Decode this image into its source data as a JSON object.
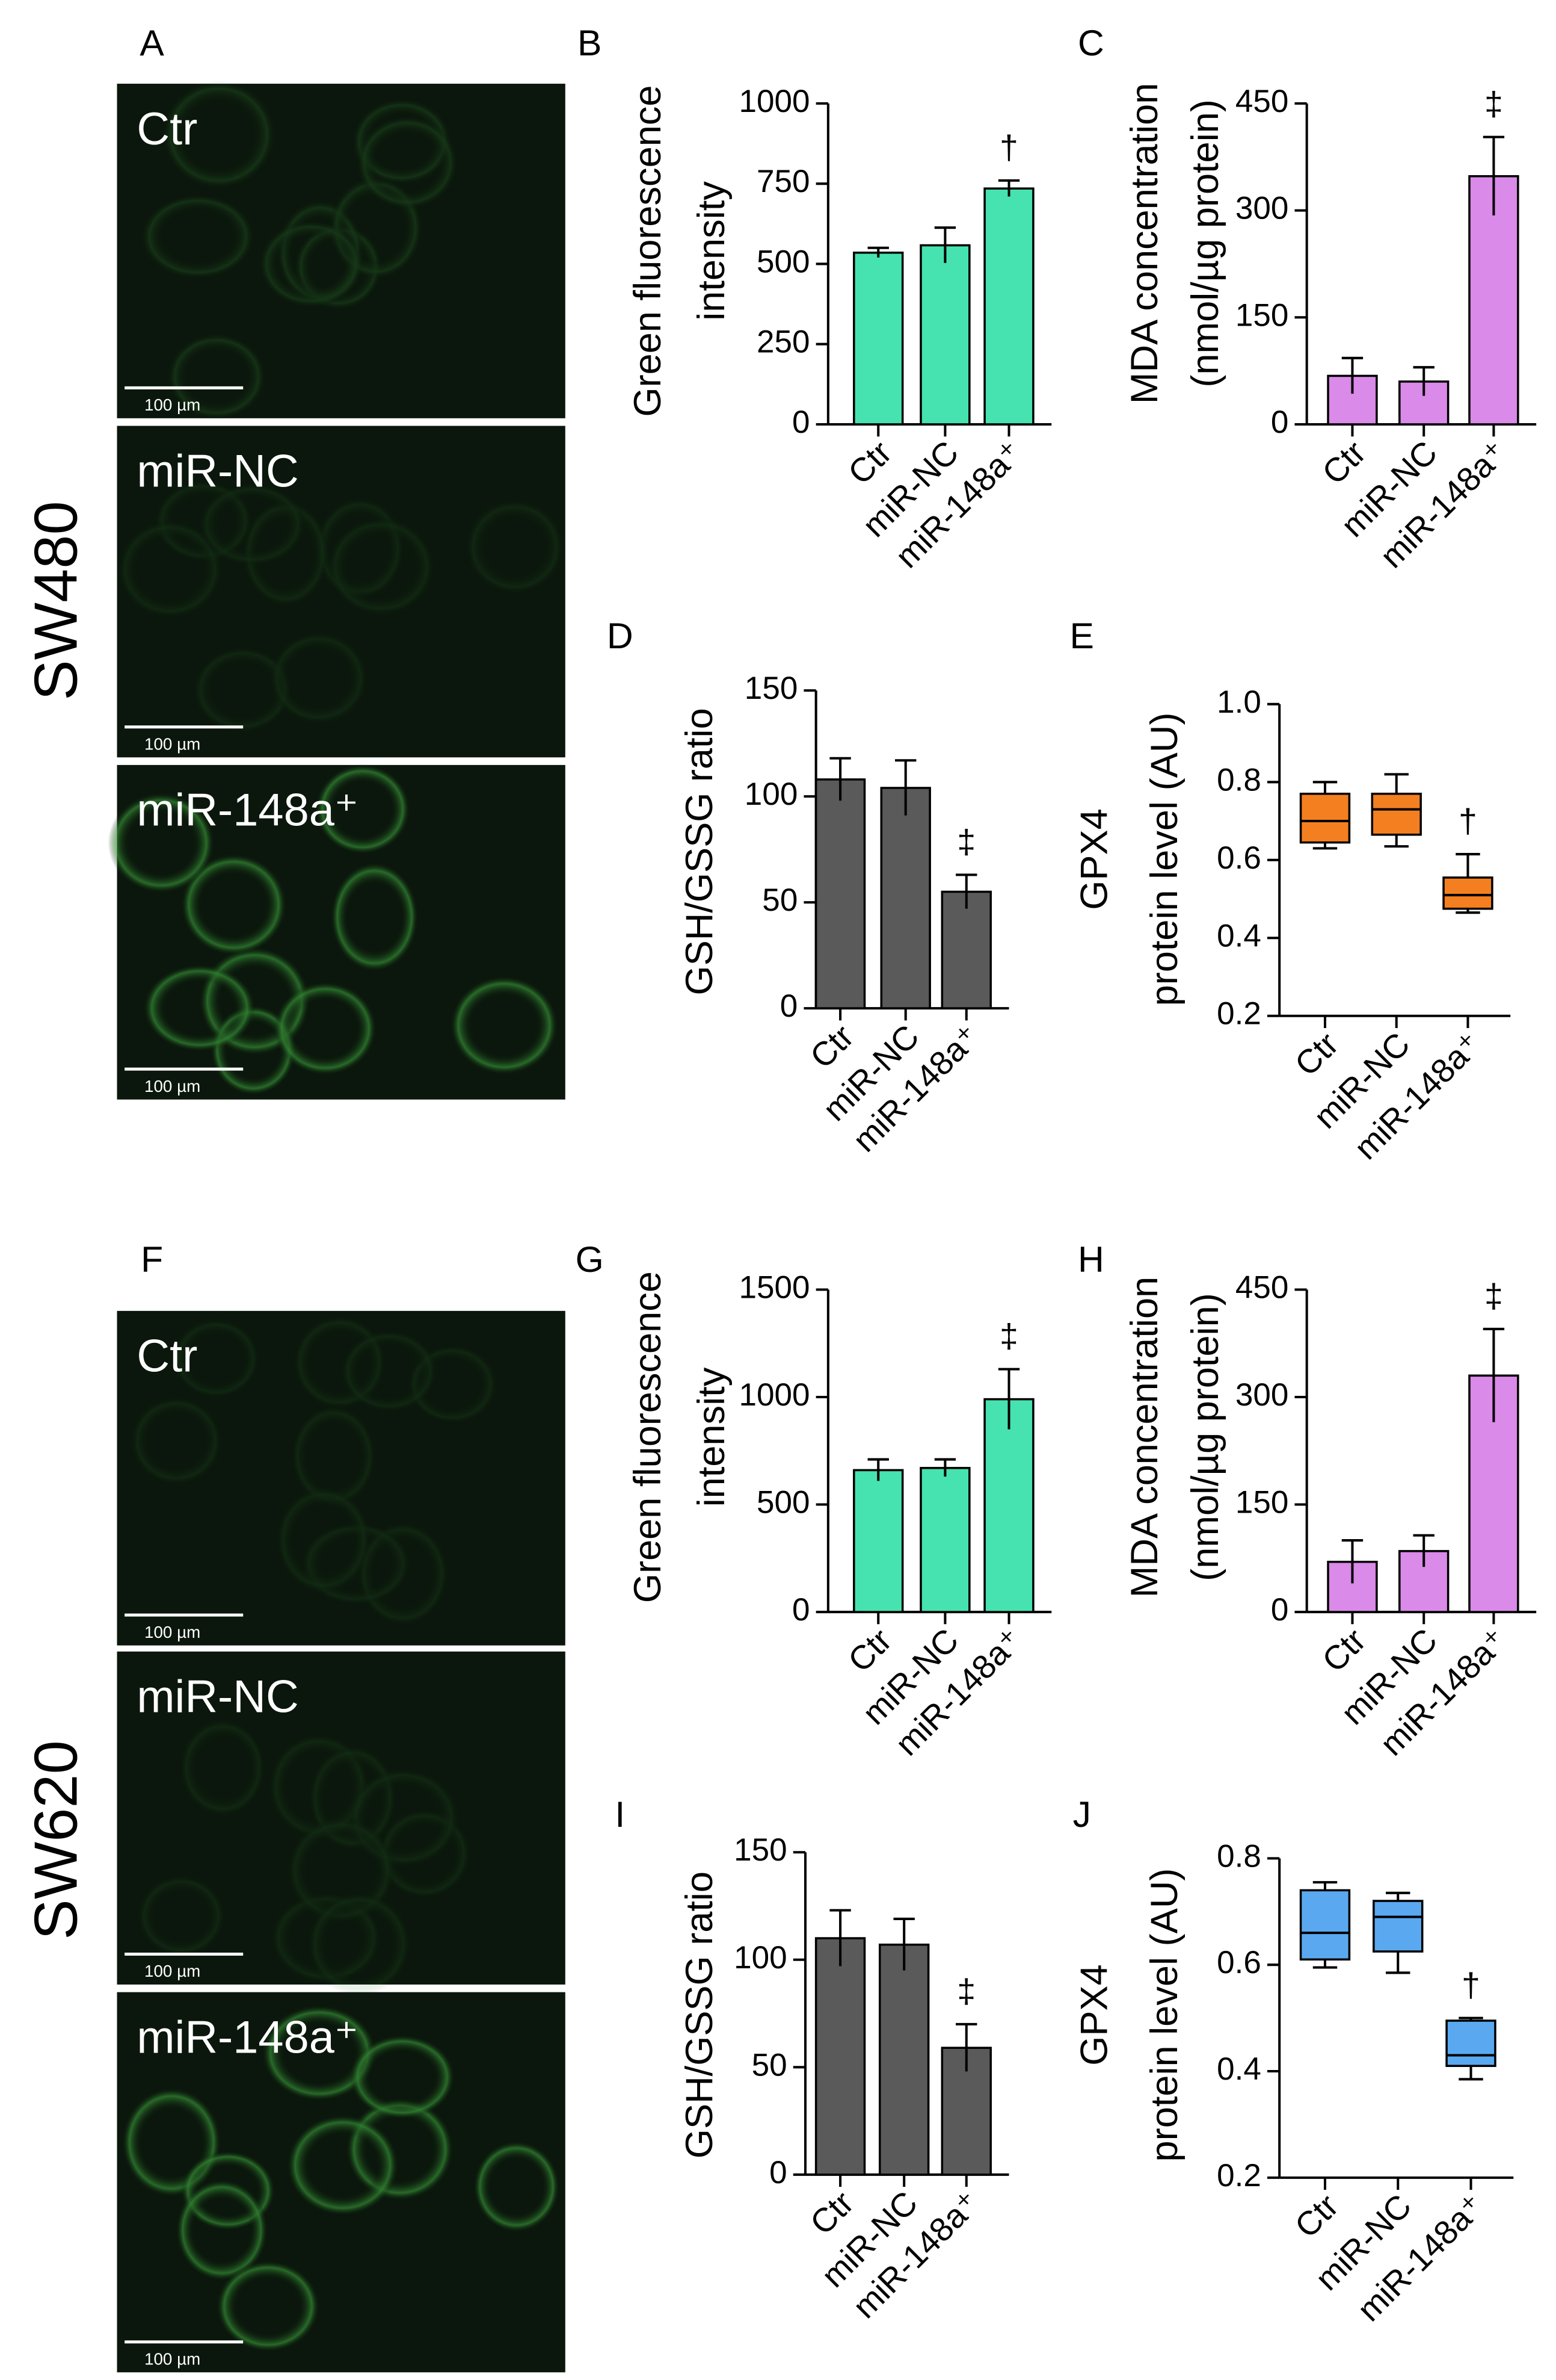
{
  "figure": {
    "panels": [
      {
        "label": "A",
        "cell_line": "SW480",
        "images": [
          {
            "label": "Ctr",
            "scale_bar": "100 µm"
          },
          {
            "label": "miR-NC",
            "scale_bar": "100 µm"
          },
          {
            "label": "miR-148a⁺",
            "scale_bar": "100 µm"
          }
        ]
      },
      {
        "label": "F",
        "cell_line": "SW620",
        "images": [
          {
            "label": "Ctr",
            "scale_bar": "100 µm"
          },
          {
            "label": "miR-NC",
            "scale_bar": "100 µm"
          },
          {
            "label": "miR-148a⁺",
            "scale_bar": "100 µm"
          }
        ]
      }
    ]
  },
  "chart_data": [
    {
      "type": "bar",
      "label": "B",
      "ylabel": [
        "Green fluorescence",
        "intensity"
      ],
      "categories": [
        "Ctr",
        "miR-NC",
        "miR-148a⁺"
      ],
      "values": [
        535,
        558,
        735
      ],
      "errors": [
        15,
        55,
        25
      ],
      "significance": [
        null,
        null,
        "†"
      ],
      "color": "#46e3b1",
      "ylim": [
        0,
        1000
      ],
      "yticks": [
        0,
        250,
        500,
        750,
        1000
      ]
    },
    {
      "type": "bar",
      "label": "C",
      "ylabel": [
        "MDA concentration",
        "(nmol/µg protein)"
      ],
      "categories": [
        "Ctr",
        "miR-NC",
        "miR-148a⁺"
      ],
      "values": [
        68,
        60,
        348
      ],
      "errors": [
        25,
        20,
        55
      ],
      "significance": [
        null,
        null,
        "‡"
      ],
      "color": "#da8ae8",
      "ylim": [
        0,
        450
      ],
      "yticks": [
        0,
        150,
        300,
        450
      ]
    },
    {
      "type": "bar",
      "label": "D",
      "ylabel": [
        "GSH/GSSG ratio"
      ],
      "categories": [
        "Ctr",
        "miR-NC",
        "miR-148a⁺"
      ],
      "values": [
        108,
        104,
        55
      ],
      "errors": [
        10,
        13,
        8
      ],
      "significance": [
        null,
        null,
        "‡"
      ],
      "color": "#5a5a5a",
      "ylim": [
        0,
        150
      ],
      "yticks": [
        0,
        50,
        100,
        150
      ]
    },
    {
      "type": "box",
      "label": "E",
      "ylabel": [
        "GPX4",
        "protein level (AU)"
      ],
      "categories": [
        "Ctr",
        "miR-NC",
        "miR-148a⁺"
      ],
      "boxes": [
        {
          "min": 0.63,
          "q1": 0.645,
          "median": 0.7,
          "q3": 0.77,
          "max": 0.8
        },
        {
          "min": 0.635,
          "q1": 0.665,
          "median": 0.73,
          "q3": 0.77,
          "max": 0.82
        },
        {
          "min": 0.465,
          "q1": 0.475,
          "median": 0.51,
          "q3": 0.555,
          "max": 0.615
        }
      ],
      "significance": [
        null,
        null,
        "†"
      ],
      "color": "#f47f20",
      "ylim": [
        0.2,
        1
      ],
      "yticks": [
        0.2,
        0.4,
        0.6,
        0.8,
        {
          "value": 1,
          "label": "1.0"
        }
      ]
    },
    {
      "type": "bar",
      "label": "G",
      "ylabel": [
        "Green fluorescence",
        "intensity"
      ],
      "categories": [
        "Ctr",
        "miR-NC",
        "miR-148a⁺"
      ],
      "values": [
        660,
        670,
        990
      ],
      "errors": [
        50,
        40,
        140
      ],
      "significance": [
        null,
        null,
        "‡"
      ],
      "color": "#46e3b1",
      "ylim": [
        0,
        1500
      ],
      "yticks": [
        0,
        500,
        1000,
        1500
      ]
    },
    {
      "type": "bar",
      "label": "H",
      "ylabel": [
        "MDA concentration",
        "(nmol/µg protein)"
      ],
      "categories": [
        "Ctr",
        "miR-NC",
        "miR-148a⁺"
      ],
      "values": [
        70,
        85,
        330
      ],
      "errors": [
        30,
        22,
        65
      ],
      "significance": [
        null,
        null,
        "‡"
      ],
      "color": "#da8ae8",
      "ylim": [
        0,
        450
      ],
      "yticks": [
        0,
        150,
        300,
        450
      ]
    },
    {
      "type": "bar",
      "label": "I",
      "ylabel": [
        "GSH/GSSG ratio"
      ],
      "categories": [
        "Ctr",
        "miR-NC",
        "miR-148a⁺"
      ],
      "values": [
        110,
        107,
        59
      ],
      "errors": [
        13,
        12,
        11
      ],
      "significance": [
        null,
        null,
        "‡"
      ],
      "color": "#5a5a5a",
      "ylim": [
        0,
        150
      ],
      "yticks": [
        0,
        50,
        100,
        150
      ]
    },
    {
      "type": "box",
      "label": "J",
      "ylabel": [
        "GPX4",
        "protein level (AU)"
      ],
      "categories": [
        "Ctr",
        "miR-NC",
        "miR-148a⁺"
      ],
      "boxes": [
        {
          "min": 0.595,
          "q1": 0.61,
          "median": 0.66,
          "q3": 0.74,
          "max": 0.755
        },
        {
          "min": 0.585,
          "q1": 0.625,
          "median": 0.69,
          "q3": 0.72,
          "max": 0.735
        },
        {
          "min": 0.385,
          "q1": 0.41,
          "median": 0.43,
          "q3": 0.495,
          "max": 0.5
        }
      ],
      "significance": [
        null,
        null,
        "†"
      ],
      "color": "#5aa9f0",
      "ylim": [
        0.2,
        0.8
      ],
      "yticks": [
        0.2,
        0.4,
        0.6,
        0.8
      ]
    }
  ]
}
